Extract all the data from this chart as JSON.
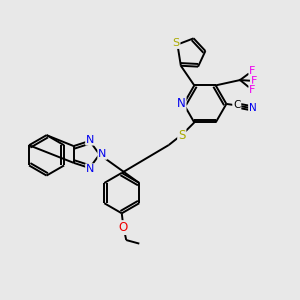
{
  "background_color": "#e8e8e8",
  "bond_color": "#000000",
  "bond_width": 1.4,
  "colors": {
    "N": "#0000ee",
    "S": "#aaaa00",
    "O": "#ee0000",
    "F": "#ee00ee",
    "C": "#000000"
  },
  "figsize": [
    3.0,
    3.0
  ],
  "dpi": 100
}
